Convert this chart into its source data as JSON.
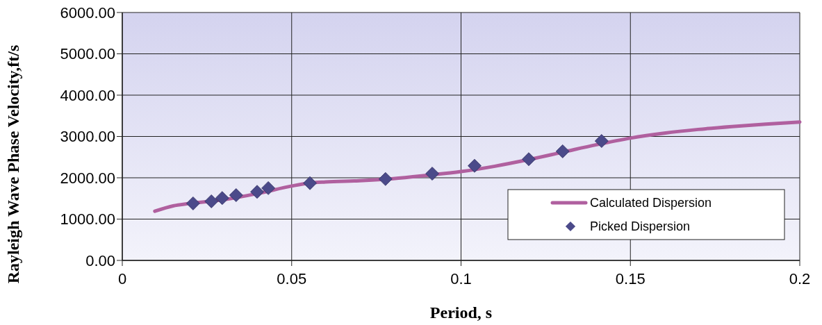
{
  "chart_data": {
    "type": "line",
    "xlabel": "Period, s",
    "ylabel": "Rayleigh Wave Phase Velocity,ft/s",
    "xlim": [
      0,
      0.2
    ],
    "xticks": [
      0,
      0.05,
      0.1,
      0.15,
      0.2
    ],
    "ylim": [
      0,
      6000
    ],
    "yticks": [
      {
        "value": 0,
        "label": "0.00"
      },
      {
        "value": 1000,
        "label": "1000.00"
      },
      {
        "value": 2000,
        "label": "2000.00"
      },
      {
        "value": 3000,
        "label": "3000.00"
      },
      {
        "value": 4000,
        "label": "4000.00"
      },
      {
        "value": 5000,
        "label": "5000.00"
      },
      {
        "value": 6000,
        "label": "6000.00"
      }
    ],
    "grid": true,
    "legend": "bottom right",
    "series": [
      {
        "name": "Calculated Dispersion",
        "color": "#b0609f",
        "marker": "none",
        "line_style": "solid",
        "x": [
          0.0096,
          0.015,
          0.02,
          0.03,
          0.04,
          0.05,
          0.055,
          0.06,
          0.07,
          0.08,
          0.09,
          0.1,
          0.11,
          0.12,
          0.13,
          0.14,
          0.15,
          0.16,
          0.17,
          0.18,
          0.19,
          0.2
        ],
        "values": [
          1190,
          1320,
          1380,
          1470,
          1620,
          1800,
          1870,
          1900,
          1930,
          1980,
          2060,
          2150,
          2280,
          2440,
          2620,
          2800,
          2960,
          3080,
          3170,
          3240,
          3300,
          3350
        ]
      },
      {
        "name": "Picked Dispersion",
        "type": "scatter",
        "color": "#4b4a8a",
        "marker": "diamond",
        "x": [
          0.0209,
          0.0263,
          0.0295,
          0.0336,
          0.0398,
          0.0431,
          0.0554,
          0.0777,
          0.0915,
          0.104,
          0.12,
          0.13,
          0.1415
        ],
        "values": [
          1380,
          1430,
          1510,
          1580,
          1660,
          1750,
          1870,
          1970,
          2100,
          2290,
          2450,
          2640,
          2890
        ]
      }
    ]
  }
}
